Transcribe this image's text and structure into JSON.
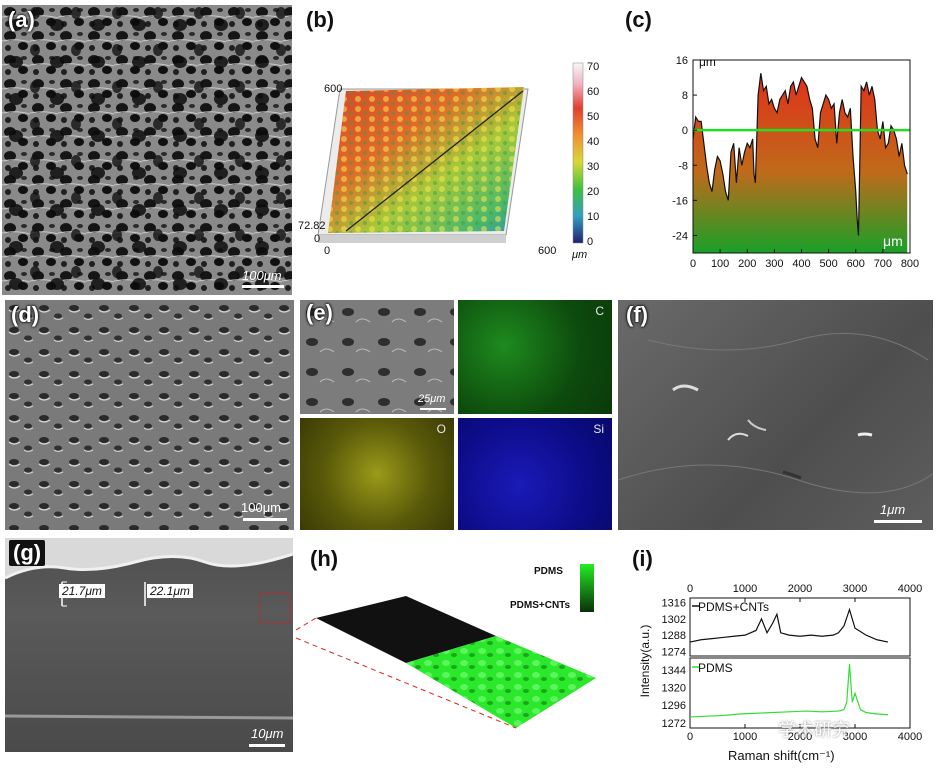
{
  "panels": {
    "a": {
      "label": "(a)",
      "scale": "100μm"
    },
    "b": {
      "label": "(b)",
      "axis_left_top": "600",
      "axis_left_bottom": "72.82",
      "axis_zero": "0",
      "axis_x_start": "0",
      "axis_x_end": "600",
      "colorbar_ticks": [
        "70",
        "60",
        "50",
        "40",
        "30",
        "20",
        "10",
        "0"
      ],
      "colorbar_unit": "μm"
    },
    "c": {
      "label": "(c)",
      "y_unit": "μm",
      "x_unit": "μm"
    },
    "d": {
      "label": "(d)",
      "scale": "100μm"
    },
    "e": {
      "label": "(e)",
      "scale": "25μm",
      "maps": [
        "C",
        "O",
        "Si"
      ]
    },
    "f": {
      "label": "(f)",
      "scale": "1μm"
    },
    "g": {
      "label": "(g)",
      "thickness_1": "21.7μm",
      "thickness_2": "22.1μm",
      "scale": "10μm"
    },
    "h": {
      "label": "(h)",
      "legend_top": "PDMS",
      "legend_bottom": "PDMS+CNTs"
    },
    "i": {
      "label": "(i)",
      "ylabel": "Intensity(a.u.)",
      "xlabel": "Raman shift(cm⁻¹)",
      "series_top": "PDMS+CNTs",
      "series_bottom": "PDMS",
      "top_x_ticks": [
        "0",
        "1000",
        "2000",
        "3000",
        "4000"
      ],
      "bottom_x_ticks": [
        "0",
        "1000",
        "2000",
        "3000",
        "4000"
      ],
      "top_y_ticks": [
        "1316",
        "1302",
        "1288",
        "1274"
      ],
      "bottom_y_ticks": [
        "1344",
        "1320",
        "1296",
        "1272"
      ]
    },
    "watermark": "学术研究"
  },
  "chart_data": [
    {
      "type": "area",
      "panel": "c",
      "xlim": [
        0,
        800
      ],
      "ylim": [
        -28,
        16
      ],
      "x_ticks": [
        0,
        100,
        200,
        300,
        400,
        500,
        600,
        700,
        800
      ],
      "y_ticks": [
        16,
        8,
        0,
        -8,
        -16,
        -24
      ],
      "reference_line": 0,
      "reference_color": "#22dd22",
      "x": [
        0,
        10,
        20,
        30,
        40,
        50,
        60,
        70,
        80,
        90,
        100,
        110,
        120,
        130,
        140,
        150,
        160,
        170,
        180,
        190,
        200,
        210,
        220,
        225,
        230,
        240,
        250,
        260,
        270,
        280,
        290,
        300,
        310,
        320,
        330,
        340,
        350,
        360,
        370,
        380,
        390,
        400,
        410,
        420,
        430,
        440,
        450,
        460,
        470,
        480,
        490,
        500,
        510,
        520,
        530,
        540,
        550,
        560,
        570,
        580,
        590,
        600,
        605,
        610,
        620,
        630,
        640,
        650,
        660,
        670,
        680,
        690,
        700,
        710,
        720,
        730,
        740,
        750,
        760,
        770,
        780,
        790
      ],
      "y": [
        -2,
        3,
        2,
        2,
        -3,
        -8,
        -12,
        -14,
        -9,
        -6,
        -7,
        -10,
        -14,
        -16,
        -5,
        -3,
        -12,
        -4,
        -8,
        -5,
        -3,
        -4,
        -2,
        -10,
        -12,
        8,
        13,
        9,
        10,
        6,
        7,
        5,
        4,
        7,
        8,
        9,
        6,
        10,
        11,
        8,
        10,
        12,
        11,
        10,
        7,
        5,
        -2,
        -4,
        4,
        6,
        8,
        7,
        5,
        6,
        -3,
        4,
        7,
        4,
        3,
        5,
        -6,
        -14,
        -20,
        -24,
        10,
        9,
        11,
        8,
        10,
        7,
        0,
        -2,
        2,
        -4,
        -3,
        1,
        0,
        -2,
        -6,
        -3,
        -8,
        -10
      ]
    },
    {
      "type": "line",
      "panel": "i",
      "xlim": [
        0,
        4000
      ],
      "x_ticks": [
        0,
        1000,
        2000,
        3000,
        4000
      ],
      "series": [
        {
          "name": "PDMS+CNTs",
          "color": "#111111",
          "ylim": [
            1270,
            1320
          ],
          "x": [
            0,
            200,
            400,
            600,
            800,
            1000,
            1200,
            1300,
            1350,
            1400,
            1500,
            1580,
            1650,
            1800,
            2000,
            2200,
            2400,
            2600,
            2700,
            2800,
            2900,
            3000,
            3200,
            3400,
            3600
          ],
          "y": [
            1282,
            1284,
            1285,
            1286,
            1287,
            1288,
            1292,
            1302,
            1296,
            1290,
            1298,
            1306,
            1290,
            1288,
            1287,
            1288,
            1287,
            1288,
            1290,
            1296,
            1310,
            1294,
            1288,
            1284,
            1282
          ]
        },
        {
          "name": "PDMS",
          "color": "#33dd33",
          "ylim": [
            1265,
            1360
          ],
          "x": [
            0,
            300,
            600,
            900,
            1200,
            1500,
            1800,
            2100,
            2400,
            2700,
            2800,
            2850,
            2900,
            2950,
            3000,
            3100,
            3200,
            3400,
            3600
          ],
          "y": [
            1280,
            1281,
            1282,
            1284,
            1285,
            1286,
            1287,
            1288,
            1287,
            1288,
            1290,
            1300,
            1352,
            1300,
            1312,
            1290,
            1286,
            1284,
            1283
          ]
        }
      ]
    }
  ]
}
